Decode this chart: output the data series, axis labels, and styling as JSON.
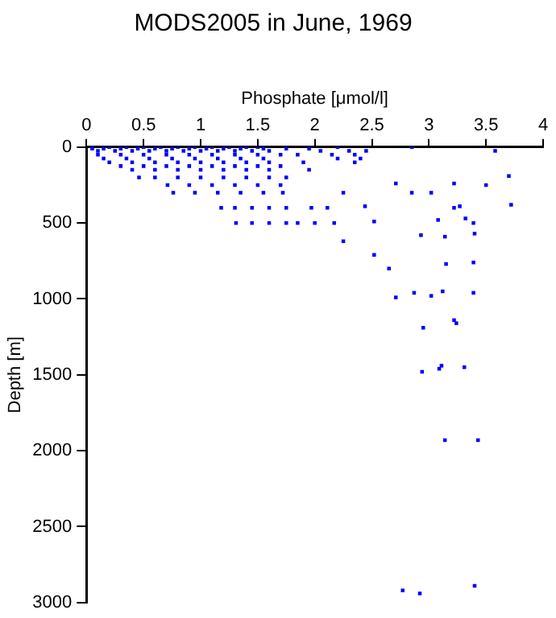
{
  "chart_data": {
    "type": "scatter",
    "title": "MODS2005 in June, 1969",
    "xlabel": "Phosphate [μmol/l]",
    "ylabel": "Depth [m]",
    "xlim": [
      0,
      4
    ],
    "xticks": [
      0,
      0.5,
      1,
      1.5,
      2,
      2.5,
      3,
      3.5,
      4
    ],
    "ylim": [
      3000,
      0
    ],
    "yticks": [
      0,
      500,
      1000,
      1500,
      2000,
      2500,
      3000
    ],
    "grid": false,
    "marker": "square",
    "series": [
      {
        "color": "#0000ff",
        "x": [
          0.05,
          0.2,
          0.35,
          0.5,
          0.65,
          0.8,
          0.95,
          1.1,
          1.25,
          1.4,
          1.5,
          2.2,
          0.05,
          0.15,
          0.3,
          0.45,
          0.6,
          0.75,
          0.9,
          1.05,
          1.2,
          1.35,
          1.55,
          1.75,
          1.95,
          0.1,
          0.25,
          0.4,
          0.55,
          0.7,
          0.85,
          1.0,
          1.15,
          1.3,
          1.45,
          1.6,
          2.05,
          2.3,
          2.45,
          0.1,
          0.3,
          0.5,
          0.7,
          0.9,
          1.1,
          1.3,
          1.5,
          1.7,
          1.85,
          2.15,
          2.35,
          0.15,
          0.35,
          0.55,
          0.75,
          0.95,
          1.15,
          1.35,
          1.55,
          2.2,
          2.4,
          0.2,
          0.4,
          0.6,
          0.8,
          1.0,
          1.2,
          1.4,
          1.6,
          1.9,
          2.35,
          0.3,
          0.5,
          0.7,
          0.9,
          1.1,
          1.3,
          1.5,
          1.7,
          0.4,
          0.6,
          0.8,
          1.0,
          1.2,
          1.4,
          1.6,
          1.95,
          0.46,
          0.6,
          0.8,
          1.0,
          1.2,
          1.4,
          1.6,
          1.75,
          0.71,
          0.9,
          1.1,
          1.3,
          1.5,
          1.7,
          0.76,
          0.95,
          1.15,
          1.35,
          1.55,
          1.72,
          1.18,
          1.3,
          1.45,
          1.6,
          1.75,
          1.97,
          2.11,
          1.31,
          1.45,
          1.6,
          1.75,
          1.85,
          2.0,
          2.17,
          2.85,
          3.58,
          3.7,
          3.72,
          3.5,
          3.22,
          3.02,
          2.85,
          2.71,
          2.25,
          2.44,
          2.52,
          2.25,
          2.52,
          2.65,
          2.71,
          2.87,
          3.02,
          3.12,
          3.39,
          2.93,
          3.08,
          3.14,
          3.15,
          3.39,
          3.22,
          3.27,
          3.32,
          3.39,
          3.4,
          3.22,
          3.24,
          2.95,
          3.11,
          3.09,
          2.94,
          3.31,
          3.14,
          3.43,
          2.77,
          2.92,
          3.4
        ],
        "values": [
          0,
          0,
          0,
          0,
          0,
          0,
          0,
          0,
          0,
          0,
          0,
          0,
          10,
          10,
          10,
          10,
          10,
          10,
          10,
          10,
          10,
          10,
          10,
          10,
          10,
          25,
          25,
          25,
          25,
          25,
          25,
          25,
          25,
          25,
          25,
          25,
          25,
          25,
          25,
          50,
          50,
          50,
          50,
          50,
          50,
          50,
          50,
          50,
          50,
          50,
          50,
          75,
          75,
          75,
          75,
          75,
          75,
          75,
          75,
          75,
          75,
          100,
          100,
          100,
          100,
          100,
          100,
          100,
          100,
          100,
          100,
          125,
          125,
          125,
          125,
          125,
          125,
          125,
          125,
          150,
          150,
          150,
          150,
          150,
          150,
          150,
          150,
          200,
          200,
          200,
          200,
          200,
          200,
          200,
          200,
          250,
          250,
          250,
          250,
          250,
          250,
          300,
          300,
          300,
          300,
          300,
          300,
          400,
          400,
          400,
          400,
          400,
          400,
          400,
          500,
          500,
          500,
          500,
          500,
          500,
          500,
          0,
          25,
          190,
          380,
          250,
          240,
          300,
          300,
          240,
          300,
          390,
          490,
          620,
          710,
          800,
          990,
          960,
          980,
          950,
          960,
          580,
          480,
          590,
          770,
          760,
          400,
          390,
          470,
          500,
          570,
          1140,
          1160,
          1190,
          1440,
          1460,
          1480,
          1450,
          1930,
          1930,
          2920,
          2940,
          2890
        ]
      }
    ]
  }
}
